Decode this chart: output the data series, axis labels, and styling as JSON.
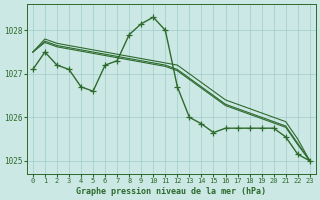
{
  "title": "Graphe pression niveau de la mer (hPa)",
  "hours": [
    0,
    1,
    2,
    3,
    4,
    5,
    6,
    7,
    8,
    9,
    10,
    11,
    12,
    13,
    14,
    15,
    16,
    17,
    18,
    19,
    20,
    21,
    22,
    23
  ],
  "series": [
    {
      "y": [
        1027.1,
        1027.5,
        1027.2,
        1027.1,
        1026.7,
        1026.6,
        1027.2,
        1027.3,
        1027.9,
        1028.15,
        1028.3,
        1028.0,
        1026.7,
        1026.0,
        1025.85,
        1025.65,
        1025.75,
        1025.75,
        1025.75,
        1025.75,
        1025.75,
        1025.55,
        1025.15,
        1025.0
      ],
      "has_markers": true,
      "lw": 1.0
    },
    {
      "y": [
        1027.5,
        1027.8,
        1027.7,
        1027.65,
        1027.6,
        1027.55,
        1027.5,
        1027.45,
        1027.4,
        1027.35,
        1027.3,
        1027.25,
        1027.2,
        1027.0,
        1026.8,
        1026.6,
        1026.4,
        1026.3,
        1026.2,
        1026.1,
        1026.0,
        1025.9,
        1025.5,
        1025.0
      ],
      "has_markers": false,
      "lw": 0.8
    },
    {
      "y": [
        1027.5,
        1027.75,
        1027.65,
        1027.6,
        1027.55,
        1027.5,
        1027.45,
        1027.4,
        1027.35,
        1027.3,
        1027.25,
        1027.2,
        1027.1,
        1026.9,
        1026.7,
        1026.5,
        1026.3,
        1026.2,
        1026.1,
        1026.0,
        1025.9,
        1025.8,
        1025.4,
        1025.0
      ],
      "has_markers": false,
      "lw": 0.8
    },
    {
      "y": [
        1027.5,
        1027.72,
        1027.62,
        1027.57,
        1027.52,
        1027.47,
        1027.42,
        1027.37,
        1027.32,
        1027.27,
        1027.22,
        1027.17,
        1027.07,
        1026.87,
        1026.67,
        1026.47,
        1026.27,
        1026.17,
        1026.07,
        1025.97,
        1025.87,
        1025.77,
        1025.37,
        1025.0
      ],
      "has_markers": false,
      "lw": 0.8
    }
  ],
  "line_color": "#2d6a2d",
  "marker": "+",
  "marker_size": 4,
  "bg_color": "#cce8e4",
  "grid_color": "#a0cccc",
  "axis_color": "#2d6a2d",
  "text_color": "#2d6a2d",
  "ylim": [
    1024.7,
    1028.6
  ],
  "yticks": [
    1025,
    1026,
    1027,
    1028
  ],
  "xticks": [
    0,
    1,
    2,
    3,
    4,
    5,
    6,
    7,
    8,
    9,
    10,
    11,
    12,
    13,
    14,
    15,
    16,
    17,
    18,
    19,
    20,
    21,
    22,
    23
  ]
}
